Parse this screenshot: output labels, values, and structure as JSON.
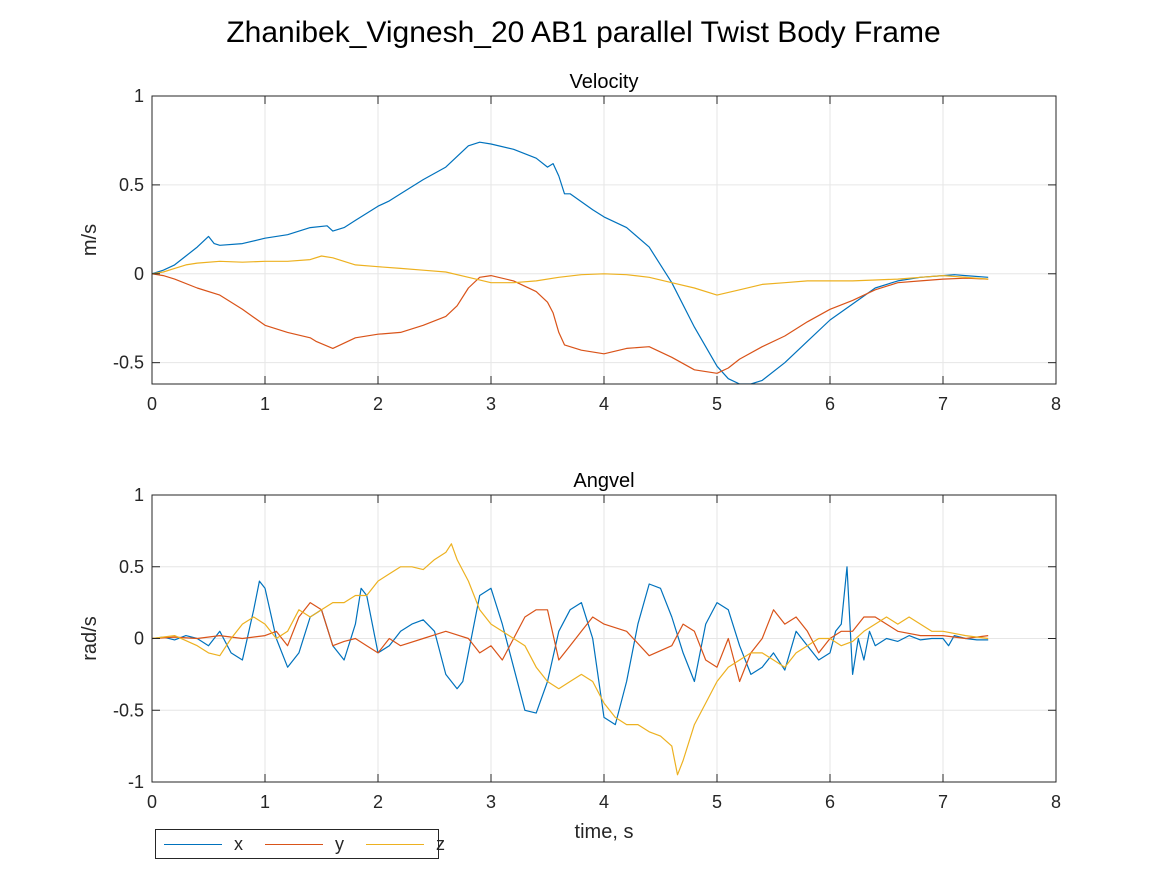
{
  "figure_title": "Zhanibek_Vignesh_20 AB1 parallel Twist Body Frame",
  "colors": {
    "x": "#0072BD",
    "y": "#D95319",
    "z": "#EDB120",
    "grid": "#e6e6e6",
    "axis": "#262626"
  },
  "legend": {
    "entries": [
      "x",
      "y",
      "z"
    ],
    "placement": "bottom-left, below plots"
  },
  "chart_data": [
    {
      "type": "line",
      "title": "Velocity",
      "xlabel": "",
      "ylabel": "m/s",
      "xlim": [
        0,
        8
      ],
      "ylim": [
        -0.62,
        1
      ],
      "xticks": [
        0,
        1,
        2,
        3,
        4,
        5,
        6,
        7,
        8
      ],
      "yticks": [
        -0.5,
        0,
        0.5,
        1
      ],
      "ytick_labels": [
        "-0.5",
        "0",
        "0.5",
        "1"
      ],
      "grid": true,
      "series": [
        {
          "name": "x",
          "x": [
            0,
            0.1,
            0.2,
            0.3,
            0.4,
            0.45,
            0.5,
            0.55,
            0.6,
            0.8,
            1.0,
            1.2,
            1.4,
            1.55,
            1.6,
            1.7,
            1.8,
            2.0,
            2.1,
            2.2,
            2.4,
            2.6,
            2.7,
            2.8,
            2.9,
            3.0,
            3.2,
            3.4,
            3.5,
            3.55,
            3.6,
            3.65,
            3.7,
            3.9,
            4.0,
            4.2,
            4.4,
            4.6,
            4.8,
            5.0,
            5.1,
            5.2,
            5.3,
            5.4,
            5.6,
            5.8,
            6.0,
            6.2,
            6.4,
            6.6,
            6.8,
            7.0,
            7.1,
            7.2,
            7.4
          ],
          "values": [
            0,
            0.02,
            0.05,
            0.1,
            0.15,
            0.18,
            0.21,
            0.17,
            0.16,
            0.17,
            0.2,
            0.22,
            0.26,
            0.27,
            0.24,
            0.26,
            0.3,
            0.38,
            0.41,
            0.45,
            0.53,
            0.6,
            0.66,
            0.72,
            0.74,
            0.73,
            0.7,
            0.65,
            0.6,
            0.62,
            0.55,
            0.45,
            0.45,
            0.36,
            0.32,
            0.26,
            0.15,
            -0.05,
            -0.3,
            -0.52,
            -0.59,
            -0.62,
            -0.62,
            -0.6,
            -0.5,
            -0.38,
            -0.26,
            -0.17,
            -0.08,
            -0.04,
            -0.02,
            -0.01,
            -0.005,
            -0.01,
            -0.02
          ]
        },
        {
          "name": "y",
          "x": [
            0,
            0.1,
            0.2,
            0.4,
            0.6,
            0.8,
            1.0,
            1.2,
            1.4,
            1.45,
            1.6,
            1.8,
            2.0,
            2.2,
            2.4,
            2.6,
            2.7,
            2.8,
            2.9,
            3.0,
            3.2,
            3.4,
            3.5,
            3.55,
            3.6,
            3.65,
            3.8,
            4.0,
            4.2,
            4.4,
            4.6,
            4.8,
            5.0,
            5.1,
            5.2,
            5.4,
            5.6,
            5.8,
            6.0,
            6.2,
            6.4,
            6.6,
            6.8,
            7.0,
            7.2,
            7.4
          ],
          "values": [
            0,
            -0.01,
            -0.03,
            -0.08,
            -0.12,
            -0.2,
            -0.29,
            -0.33,
            -0.36,
            -0.38,
            -0.42,
            -0.36,
            -0.34,
            -0.33,
            -0.29,
            -0.24,
            -0.18,
            -0.08,
            -0.02,
            -0.01,
            -0.04,
            -0.1,
            -0.16,
            -0.22,
            -0.33,
            -0.4,
            -0.43,
            -0.45,
            -0.42,
            -0.41,
            -0.47,
            -0.54,
            -0.56,
            -0.53,
            -0.48,
            -0.41,
            -0.35,
            -0.27,
            -0.2,
            -0.15,
            -0.09,
            -0.05,
            -0.04,
            -0.03,
            -0.025,
            -0.03
          ]
        },
        {
          "name": "z",
          "x": [
            0,
            0.1,
            0.2,
            0.3,
            0.4,
            0.6,
            0.8,
            1.0,
            1.2,
            1.4,
            1.5,
            1.6,
            1.8,
            2.0,
            2.2,
            2.4,
            2.6,
            2.8,
            3.0,
            3.2,
            3.4,
            3.6,
            3.8,
            4.0,
            4.2,
            4.4,
            4.6,
            4.8,
            5.0,
            5.2,
            5.4,
            5.6,
            5.8,
            6.0,
            6.2,
            6.4,
            6.6,
            6.8,
            7.0,
            7.2,
            7.4
          ],
          "values": [
            0,
            0.01,
            0.03,
            0.05,
            0.06,
            0.07,
            0.065,
            0.07,
            0.07,
            0.08,
            0.1,
            0.09,
            0.05,
            0.04,
            0.03,
            0.02,
            0.01,
            -0.02,
            -0.05,
            -0.05,
            -0.04,
            -0.02,
            -0.005,
            0,
            -0.005,
            -0.02,
            -0.05,
            -0.08,
            -0.12,
            -0.09,
            -0.06,
            -0.05,
            -0.04,
            -0.04,
            -0.04,
            -0.035,
            -0.03,
            -0.02,
            -0.01,
            -0.02,
            -0.03
          ]
        }
      ]
    },
    {
      "type": "line",
      "title": "Angvel",
      "xlabel": "time, s",
      "ylabel": "rad/s",
      "xlim": [
        0,
        8
      ],
      "ylim": [
        -1,
        1
      ],
      "xticks": [
        0,
        1,
        2,
        3,
        4,
        5,
        6,
        7,
        8
      ],
      "yticks": [
        -1,
        -0.5,
        0,
        0.5,
        1
      ],
      "ytick_labels": [
        "-1",
        "-0.5",
        "0",
        "0.5",
        "1"
      ],
      "grid": true,
      "series": [
        {
          "name": "x",
          "x": [
            0,
            0.1,
            0.2,
            0.3,
            0.4,
            0.5,
            0.6,
            0.7,
            0.8,
            0.9,
            0.95,
            1.0,
            1.1,
            1.2,
            1.3,
            1.4,
            1.5,
            1.6,
            1.7,
            1.8,
            1.85,
            1.9,
            2.0,
            2.1,
            2.2,
            2.3,
            2.4,
            2.5,
            2.6,
            2.7,
            2.75,
            2.8,
            2.9,
            3.0,
            3.1,
            3.2,
            3.3,
            3.4,
            3.5,
            3.6,
            3.7,
            3.8,
            3.9,
            4.0,
            4.1,
            4.2,
            4.3,
            4.4,
            4.5,
            4.6,
            4.7,
            4.8,
            4.9,
            5.0,
            5.1,
            5.2,
            5.3,
            5.4,
            5.5,
            5.6,
            5.7,
            5.8,
            5.9,
            6.0,
            6.05,
            6.1,
            6.15,
            6.2,
            6.25,
            6.3,
            6.35,
            6.4,
            6.5,
            6.6,
            6.7,
            6.8,
            6.9,
            7.0,
            7.05,
            7.1,
            7.2,
            7.3,
            7.4
          ],
          "values": [
            0,
            0.01,
            -0.01,
            0.02,
            0,
            -0.05,
            0.05,
            -0.1,
            -0.15,
            0.2,
            0.4,
            0.35,
            0,
            -0.2,
            -0.1,
            0.15,
            0.2,
            -0.05,
            -0.15,
            0.1,
            0.35,
            0.3,
            -0.1,
            -0.05,
            0.05,
            0.1,
            0.13,
            0.05,
            -0.25,
            -0.35,
            -0.3,
            -0.1,
            0.3,
            0.35,
            0.1,
            -0.2,
            -0.5,
            -0.52,
            -0.3,
            0.05,
            0.2,
            0.25,
            0,
            -0.55,
            -0.6,
            -0.3,
            0.1,
            0.38,
            0.35,
            0.15,
            -0.1,
            -0.3,
            0.1,
            0.25,
            0.2,
            -0.05,
            -0.25,
            -0.2,
            -0.1,
            -0.22,
            0.05,
            -0.05,
            -0.15,
            -0.1,
            0.05,
            0.1,
            0.5,
            -0.25,
            0,
            -0.15,
            0.05,
            -0.05,
            0,
            -0.02,
            0.02,
            -0.01,
            0,
            0,
            -0.05,
            0.02,
            0,
            -0.01,
            -0.01
          ]
        },
        {
          "name": "y",
          "x": [
            0,
            0.2,
            0.4,
            0.6,
            0.8,
            1.0,
            1.1,
            1.2,
            1.3,
            1.4,
            1.5,
            1.6,
            1.7,
            1.8,
            1.9,
            2.0,
            2.1,
            2.2,
            2.4,
            2.6,
            2.8,
            2.9,
            3.0,
            3.1,
            3.2,
            3.3,
            3.4,
            3.5,
            3.6,
            3.7,
            3.8,
            3.9,
            4.0,
            4.2,
            4.4,
            4.6,
            4.7,
            4.8,
            4.9,
            5.0,
            5.1,
            5.2,
            5.3,
            5.4,
            5.5,
            5.6,
            5.7,
            5.8,
            5.9,
            6.0,
            6.1,
            6.2,
            6.3,
            6.4,
            6.5,
            6.6,
            6.8,
            7.0,
            7.2,
            7.4
          ],
          "values": [
            0,
            0.01,
            0,
            0.02,
            0,
            0.02,
            0.05,
            -0.05,
            0.15,
            0.25,
            0.2,
            -0.05,
            -0.02,
            0,
            -0.05,
            -0.1,
            0,
            -0.05,
            0,
            0.05,
            0,
            -0.1,
            -0.05,
            -0.15,
            0,
            0.15,
            0.2,
            0.2,
            -0.15,
            -0.05,
            0.05,
            0.15,
            0.1,
            0.05,
            -0.12,
            -0.05,
            0.1,
            0.05,
            -0.15,
            -0.2,
            0,
            -0.3,
            -0.1,
            0,
            0.2,
            0.1,
            0.15,
            0.05,
            -0.1,
            0,
            0.05,
            0.05,
            0.15,
            0.15,
            0.1,
            0.05,
            0.02,
            0.02,
            0,
            0.02
          ]
        },
        {
          "name": "z",
          "x": [
            0,
            0.2,
            0.4,
            0.5,
            0.6,
            0.7,
            0.8,
            0.9,
            1.0,
            1.1,
            1.2,
            1.3,
            1.4,
            1.5,
            1.6,
            1.7,
            1.8,
            1.9,
            2.0,
            2.1,
            2.2,
            2.3,
            2.4,
            2.5,
            2.6,
            2.65,
            2.7,
            2.8,
            2.9,
            3.0,
            3.1,
            3.2,
            3.3,
            3.4,
            3.5,
            3.6,
            3.7,
            3.8,
            3.9,
            4.0,
            4.1,
            4.2,
            4.3,
            4.4,
            4.5,
            4.6,
            4.65,
            4.7,
            4.8,
            4.9,
            5.0,
            5.1,
            5.2,
            5.3,
            5.4,
            5.5,
            5.6,
            5.7,
            5.8,
            5.9,
            6.0,
            6.1,
            6.2,
            6.3,
            6.4,
            6.5,
            6.6,
            6.7,
            6.8,
            6.9,
            7.0,
            7.2,
            7.4
          ],
          "values": [
            0,
            0.02,
            -0.05,
            -0.1,
            -0.12,
            0,
            0.1,
            0.15,
            0.1,
            0,
            0.05,
            0.2,
            0.15,
            0.2,
            0.25,
            0.25,
            0.3,
            0.3,
            0.4,
            0.45,
            0.5,
            0.5,
            0.48,
            0.55,
            0.6,
            0.66,
            0.55,
            0.4,
            0.2,
            0.1,
            0.05,
            0,
            -0.05,
            -0.2,
            -0.3,
            -0.35,
            -0.3,
            -0.25,
            -0.3,
            -0.45,
            -0.55,
            -0.6,
            -0.6,
            -0.65,
            -0.68,
            -0.75,
            -0.95,
            -0.85,
            -0.6,
            -0.45,
            -0.3,
            -0.2,
            -0.15,
            -0.1,
            -0.1,
            -0.15,
            -0.2,
            -0.1,
            -0.05,
            0,
            0,
            -0.05,
            -0.02,
            0.05,
            0.1,
            0.15,
            0.1,
            0.15,
            0.1,
            0.05,
            0.05,
            0.02,
            0
          ]
        }
      ]
    }
  ]
}
